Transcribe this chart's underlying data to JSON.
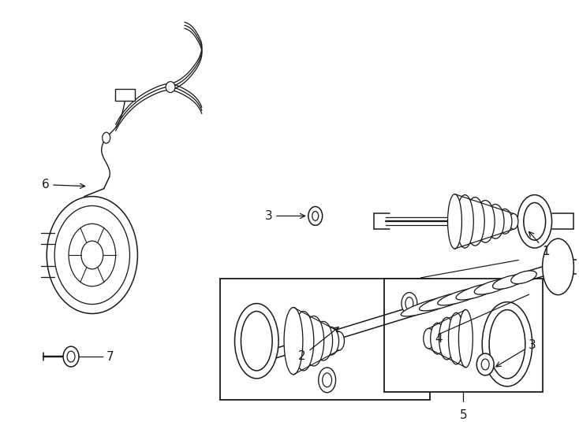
{
  "bg_color": "#ffffff",
  "line_color": "#1a1a1a",
  "lw": 1.1,
  "fig_width": 7.34,
  "fig_height": 5.4,
  "dpi": 100,
  "fontsize": 11
}
